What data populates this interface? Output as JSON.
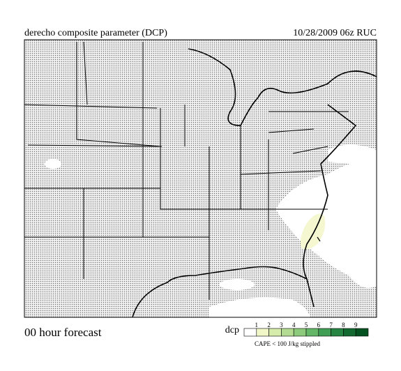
{
  "header": {
    "title": "derecho composite parameter (DCP)",
    "valid": "10/28/2009  06z  RUC"
  },
  "footer": {
    "forecast": "00 hour forecast",
    "note": "CAPE < 100 J/kg stippled"
  },
  "legend": {
    "label": "dcp",
    "ticks": [
      1,
      2,
      3,
      4,
      5,
      6,
      7,
      8,
      9
    ],
    "colors": [
      "#ffffff",
      "#f2f7c8",
      "#d6ecaa",
      "#b3dc92",
      "#8ccb7c",
      "#63b767",
      "#3f9f54",
      "#268542",
      "#136a31",
      "#04521f"
    ]
  }
}
